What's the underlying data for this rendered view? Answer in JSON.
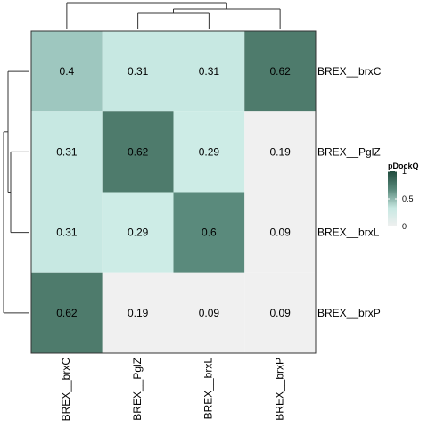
{
  "chart_data": {
    "type": "heatmap",
    "rows": [
      "BREX__brxC",
      "BREX__PglZ",
      "BREX__brxL",
      "BREX__brxP"
    ],
    "columns": [
      "BREX__brxC",
      "BREX__PglZ",
      "BREX__brxL",
      "BREX__brxP"
    ],
    "values": [
      [
        0.4,
        0.31,
        0.31,
        0.62
      ],
      [
        0.31,
        0.62,
        0.29,
        0.19
      ],
      [
        0.31,
        0.29,
        0.6,
        0.09
      ],
      [
        0.62,
        0.19,
        0.09,
        0.09
      ]
    ],
    "value_labels": [
      [
        "0.4",
        "0.31",
        "0.31",
        "0.62"
      ],
      [
        "0.31",
        "0.62",
        "0.29",
        "0.19"
      ],
      [
        "0.31",
        "0.29",
        "0.6",
        "0.09"
      ],
      [
        "0.62",
        "0.19",
        "0.09",
        "0.09"
      ]
    ],
    "cell_colors": [
      [
        "#9ec7bf",
        "#c7e8e2",
        "#c7e8e2",
        "#4e7b6c"
      ],
      [
        "#c7e8e2",
        "#4e7b6c",
        "#cdece6",
        "#f0f0f0"
      ],
      [
        "#c7e8e2",
        "#cdece6",
        "#5a8a7c",
        "#f0f0f0"
      ],
      [
        "#4e7b6c",
        "#f0f0f0",
        "#f0f0f0",
        "#f0f0f0"
      ]
    ],
    "legend": {
      "title": "pDockQ",
      "ticks": [
        "1",
        "0.5",
        "0"
      ],
      "range": [
        0,
        1
      ],
      "colors": [
        "#f0f0f0",
        "#c7e8e2",
        "#5a8a7c",
        "#1f4a3c"
      ]
    },
    "dendrograms": {
      "rows": true,
      "columns": true
    },
    "grid": false
  }
}
